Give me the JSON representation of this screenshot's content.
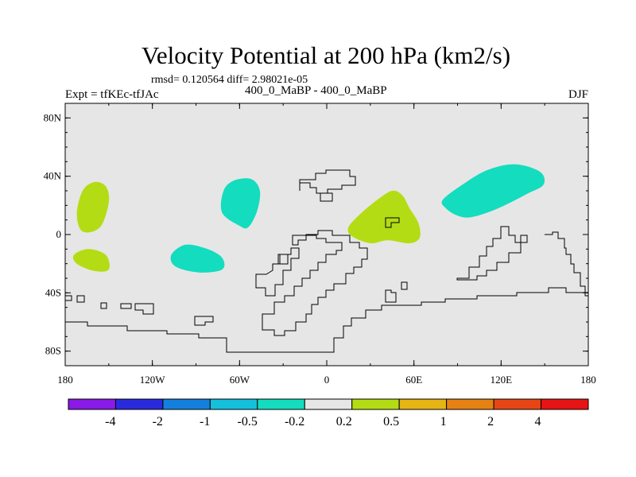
{
  "title": "Velocity Potential at 200 hPa (km2/s)",
  "stats": "rmsd= 0.120564 diff= 2.98021e-05",
  "experiment": "Expt = tfKEc-tfJAc",
  "runs": "400_0_MaBP - 400_0_MaBP",
  "season": "DJF",
  "axes": {
    "lon_range": [
      -180,
      180
    ],
    "lat_range": [
      -90,
      90
    ],
    "lat_ticks": [
      {
        "value": 80,
        "label": "80N"
      },
      {
        "value": 40,
        "label": "40N"
      },
      {
        "value": 0,
        "label": "0"
      },
      {
        "value": -40,
        "label": "40S"
      },
      {
        "value": -80,
        "label": "80S"
      }
    ],
    "lon_ticks": [
      {
        "value": -180,
        "label": "180"
      },
      {
        "value": -120,
        "label": "120W"
      },
      {
        "value": -60,
        "label": "60W"
      },
      {
        "value": 0,
        "label": "0"
      },
      {
        "value": 60,
        "label": "60E"
      },
      {
        "value": 120,
        "label": "120E"
      },
      {
        "value": 180,
        "label": "180"
      }
    ]
  },
  "colorbar": {
    "colors": [
      "#8a1ae6",
      "#2a2add",
      "#1480dd",
      "#14c0dc",
      "#14dcbe",
      "#e6e6e6",
      "#b4dc14",
      "#e6b414",
      "#e68214",
      "#e64614",
      "#e61414"
    ],
    "labels": [
      "-4",
      "-2",
      "-1",
      "-0.5",
      "-0.2",
      "0.2",
      "0.5",
      "1",
      "2",
      "4"
    ]
  },
  "colors": {
    "background": "#e6e6e6",
    "coast": "#000000"
  },
  "regions": [
    {
      "sign": "positive",
      "color": "#b4dc14",
      "points": [
        [
          -168,
          30
        ],
        [
          -160,
          36
        ],
        [
          -152,
          33
        ],
        [
          -150,
          22
        ],
        [
          -156,
          5
        ],
        [
          -168,
          2
        ],
        [
          -172,
          14
        ]
      ]
    },
    {
      "sign": "positive",
      "color": "#b4dc14",
      "points": [
        [
          -174,
          -14
        ],
        [
          -164,
          -10
        ],
        [
          -152,
          -14
        ],
        [
          -150,
          -24
        ],
        [
          -160,
          -25
        ],
        [
          -172,
          -20
        ]
      ]
    },
    {
      "sign": "positive",
      "color": "#b4dc14",
      "points": [
        [
          23,
          14
        ],
        [
          35,
          24
        ],
        [
          45,
          30
        ],
        [
          52,
          27
        ],
        [
          57,
          18
        ],
        [
          63,
          8
        ],
        [
          64,
          -2
        ],
        [
          57,
          -6
        ],
        [
          42,
          -4
        ],
        [
          30,
          -6
        ],
        [
          17,
          -1
        ],
        [
          15,
          5
        ]
      ]
    },
    {
      "sign": "negative",
      "color": "#14dcbe",
      "points": [
        [
          -71,
          30
        ],
        [
          -64,
          37
        ],
        [
          -52,
          38
        ],
        [
          -46,
          30
        ],
        [
          -48,
          16
        ],
        [
          -54,
          5
        ],
        [
          -60,
          6
        ],
        [
          -72,
          15
        ]
      ]
    },
    {
      "sign": "negative",
      "color": "#14dcbe",
      "points": [
        [
          -107,
          -14
        ],
        [
          -97,
          -7
        ],
        [
          -82,
          -10
        ],
        [
          -72,
          -16
        ],
        [
          -72,
          -24
        ],
        [
          -88,
          -26
        ],
        [
          -104,
          -22
        ]
      ]
    },
    {
      "sign": "negative",
      "color": "#14dcbe",
      "points": [
        [
          80,
          24
        ],
        [
          96,
          36
        ],
        [
          110,
          44
        ],
        [
          125,
          48
        ],
        [
          137,
          47
        ],
        [
          148,
          42
        ],
        [
          149,
          34
        ],
        [
          138,
          28
        ],
        [
          118,
          18
        ],
        [
          100,
          12
        ],
        [
          90,
          13
        ],
        [
          82,
          18
        ]
      ]
    }
  ]
}
